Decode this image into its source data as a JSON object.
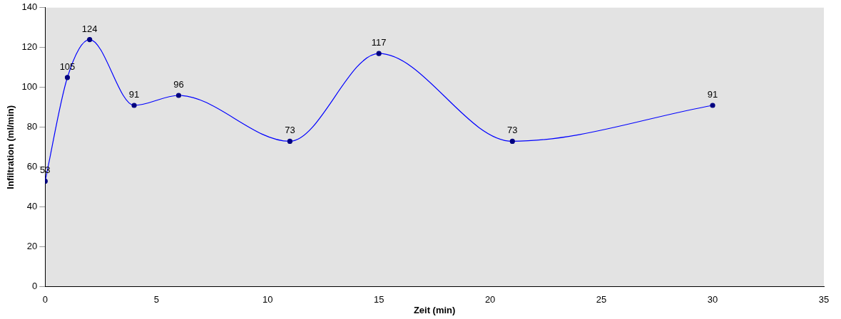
{
  "chart_data": {
    "type": "line",
    "xlabel": "Zeit (min)",
    "ylabel": "Infiltration (ml/min)",
    "x": [
      0,
      1,
      2,
      4,
      6,
      11,
      15,
      21,
      30
    ],
    "series": [
      {
        "color": "#0000ff",
        "values": [
          53,
          105,
          124,
          91,
          96,
          73,
          117,
          73,
          91
        ]
      }
    ],
    "xlim": [
      0,
      35
    ],
    "xticks": [
      0,
      5,
      10,
      15,
      20,
      25,
      30,
      35
    ],
    "ylim": [
      0,
      140
    ],
    "yticks": [
      0,
      20,
      40,
      60,
      80,
      100,
      120,
      140
    ],
    "data_labels": true,
    "marker": "circle",
    "grid": false
  }
}
